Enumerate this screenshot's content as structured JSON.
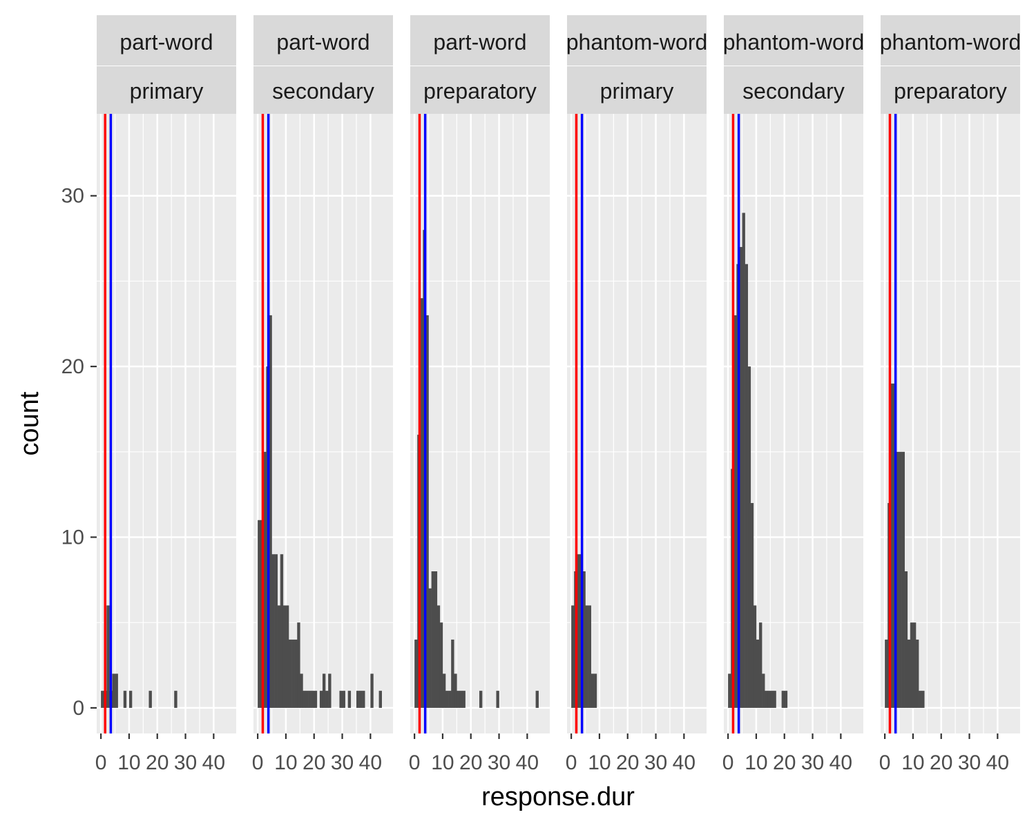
{
  "chart_data": {
    "type": "bar",
    "subtype": "histogram-facets",
    "xlabel": "response.dur",
    "ylabel": "count",
    "xlim": [
      -1.5,
      48
    ],
    "ylim": [
      -1.5,
      34.8
    ],
    "x_ticks": [
      0,
      10,
      20,
      30,
      40
    ],
    "x_tick_labels": [
      "0",
      "10",
      "20",
      "30",
      "40"
    ],
    "y_ticks": [
      0,
      10,
      20,
      30
    ],
    "y_tick_labels": [
      "0",
      "10",
      "20",
      "30"
    ],
    "bin_width": 1,
    "grid": true,
    "colors": {
      "panel": "#EBEBEB",
      "grid": "#FFFFFF",
      "strip": "#D9D9D9",
      "bar": "#4D4D4D",
      "line_red": "#FF0000",
      "line_blue": "#0000FF"
    },
    "facets": [
      {
        "row1": "part-word",
        "row2": "primary",
        "red_line": 1.5,
        "blue_line": 3.5,
        "bins": [
          [
            0,
            1
          ],
          [
            1,
            1
          ],
          [
            2,
            6
          ],
          [
            3,
            1
          ],
          [
            4,
            2
          ],
          [
            5,
            2
          ],
          [
            8,
            1
          ],
          [
            10,
            1
          ],
          [
            17,
            1
          ],
          [
            26,
            1
          ]
        ]
      },
      {
        "row1": "part-word",
        "row2": "secondary",
        "red_line": 1.8,
        "blue_line": 3.8,
        "bins": [
          [
            0,
            11
          ],
          [
            1,
            11
          ],
          [
            2,
            15
          ],
          [
            3,
            20
          ],
          [
            4,
            23
          ],
          [
            5,
            9
          ],
          [
            6,
            9
          ],
          [
            7,
            6
          ],
          [
            8,
            9
          ],
          [
            9,
            6
          ],
          [
            10,
            6
          ],
          [
            11,
            4
          ],
          [
            12,
            4
          ],
          [
            13,
            4
          ],
          [
            14,
            5
          ],
          [
            15,
            2
          ],
          [
            16,
            1
          ],
          [
            17,
            1
          ],
          [
            18,
            1
          ],
          [
            19,
            1
          ],
          [
            20,
            1
          ],
          [
            21,
            0
          ],
          [
            22,
            1
          ],
          [
            23,
            2
          ],
          [
            24,
            1
          ],
          [
            25,
            2
          ],
          [
            29,
            1
          ],
          [
            30,
            1
          ],
          [
            32,
            1
          ],
          [
            35,
            1
          ],
          [
            36,
            1
          ],
          [
            37,
            1
          ],
          [
            40,
            2
          ],
          [
            43,
            1
          ]
        ]
      },
      {
        "row1": "part-word",
        "row2": "preparatory",
        "red_line": 1.8,
        "blue_line": 3.8,
        "bins": [
          [
            0,
            4
          ],
          [
            1,
            16
          ],
          [
            2,
            24
          ],
          [
            3,
            28
          ],
          [
            4,
            23
          ],
          [
            5,
            7
          ],
          [
            6,
            8
          ],
          [
            7,
            8
          ],
          [
            8,
            6
          ],
          [
            9,
            5
          ],
          [
            10,
            2
          ],
          [
            11,
            1
          ],
          [
            12,
            1
          ],
          [
            13,
            4
          ],
          [
            14,
            2
          ],
          [
            15,
            1
          ],
          [
            16,
            1
          ],
          [
            17,
            1
          ],
          [
            23,
            1
          ],
          [
            29,
            1
          ],
          [
            43,
            1
          ]
        ]
      },
      {
        "row1": "phantom-word",
        "row2": "primary",
        "red_line": 1.8,
        "blue_line": 3.8,
        "bins": [
          [
            0,
            6
          ],
          [
            1,
            8
          ],
          [
            2,
            9
          ],
          [
            3,
            9
          ],
          [
            4,
            8
          ],
          [
            5,
            6
          ],
          [
            6,
            6
          ],
          [
            7,
            2
          ],
          [
            8,
            2
          ]
        ]
      },
      {
        "row1": "phantom-word",
        "row2": "secondary",
        "red_line": 1.8,
        "blue_line": 3.8,
        "bins": [
          [
            0,
            2
          ],
          [
            1,
            14
          ],
          [
            2,
            23
          ],
          [
            3,
            26
          ],
          [
            4,
            27
          ],
          [
            5,
            29
          ],
          [
            6,
            26
          ],
          [
            7,
            20
          ],
          [
            8,
            12
          ],
          [
            9,
            6
          ],
          [
            10,
            4
          ],
          [
            11,
            5
          ],
          [
            12,
            2
          ],
          [
            13,
            1
          ],
          [
            14,
            1
          ],
          [
            15,
            1
          ],
          [
            16,
            1
          ],
          [
            19,
            1
          ],
          [
            20,
            1
          ]
        ]
      },
      {
        "row1": "phantom-word",
        "row2": "preparatory",
        "red_line": 1.8,
        "blue_line": 3.8,
        "bins": [
          [
            0,
            4
          ],
          [
            1,
            12
          ],
          [
            2,
            19
          ],
          [
            3,
            19
          ],
          [
            4,
            15
          ],
          [
            5,
            15
          ],
          [
            6,
            15
          ],
          [
            7,
            8
          ],
          [
            8,
            4
          ],
          [
            9,
            5
          ],
          [
            10,
            5
          ],
          [
            11,
            4
          ],
          [
            12,
            1
          ],
          [
            13,
            1
          ]
        ]
      }
    ]
  }
}
